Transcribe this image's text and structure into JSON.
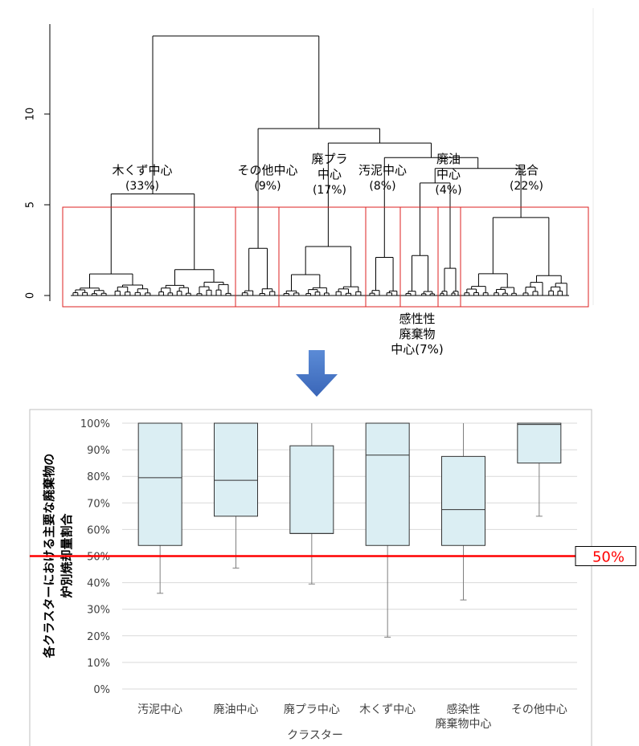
{
  "colors": {
    "tree": "#000000",
    "cluster_box": "#dd2222",
    "arrow": "#4472c4",
    "box_fill": "#dbeef3",
    "box_stroke": "#333333",
    "threshold": "#ff0000",
    "grid": "#d9d9d9",
    "frame": "#bfbfbf"
  },
  "chart_data": [
    {
      "type": "dendrogram",
      "y_ticks": [
        "0",
        "5",
        "10"
      ],
      "ylim": [
        0,
        15
      ],
      "clusters": [
        {
          "name": "木くず中心",
          "share": "(33%)"
        },
        {
          "name": "その他中心",
          "share": "(9%)"
        },
        {
          "name": "廃プラ\n中心",
          "share": "(17%)"
        },
        {
          "name": "汚泥中心",
          "share": "(8%)"
        },
        {
          "name": "感性性\n廃棄物\n中心(7%)",
          "share": ""
        },
        {
          "name": "廃油\n中心",
          "share": "(4%)"
        },
        {
          "name": "混合",
          "share": "(22%)"
        }
      ],
      "merge_heights": {
        "root": 14.3,
        "upper_right": 9.2,
        "mid": 8.4,
        "wood_cluster": 5.6,
        "cut_line": 4.8
      }
    },
    {
      "type": "boxplot",
      "categories": [
        "汚泥中心",
        "廃油中心",
        "廃プラ中心",
        "木くず中心",
        "感染性\n廃棄物中心",
        "その他中心"
      ],
      "y_ticks": [
        "0%",
        "10%",
        "20%",
        "30%",
        "40%",
        "50%",
        "60%",
        "70%",
        "80%",
        "90%",
        "100%"
      ],
      "ylim": [
        0,
        100
      ],
      "ylabel": "各クラスターにおける主要な廃棄物の\n炉別焼却量割合",
      "xlabel": "クラスター",
      "threshold": {
        "value": 50,
        "label": "50%"
      },
      "boxes": [
        {
          "min": 36,
          "q1": 54,
          "median": 79.5,
          "q3": 100,
          "max": 100
        },
        {
          "min": 45.5,
          "q1": 65,
          "median": 78.5,
          "q3": 100,
          "max": 100
        },
        {
          "min": 39.5,
          "q1": 58.5,
          "median": 58.5,
          "q3": 91.5,
          "max": 100
        },
        {
          "min": 19.5,
          "q1": 54,
          "median": 88,
          "q3": 100,
          "max": 100
        },
        {
          "min": 33.5,
          "q1": 54,
          "median": 67.5,
          "q3": 87.5,
          "max": 100
        },
        {
          "min": 65,
          "q1": 85,
          "median": 99.5,
          "q3": 100,
          "max": 100
        }
      ]
    }
  ]
}
